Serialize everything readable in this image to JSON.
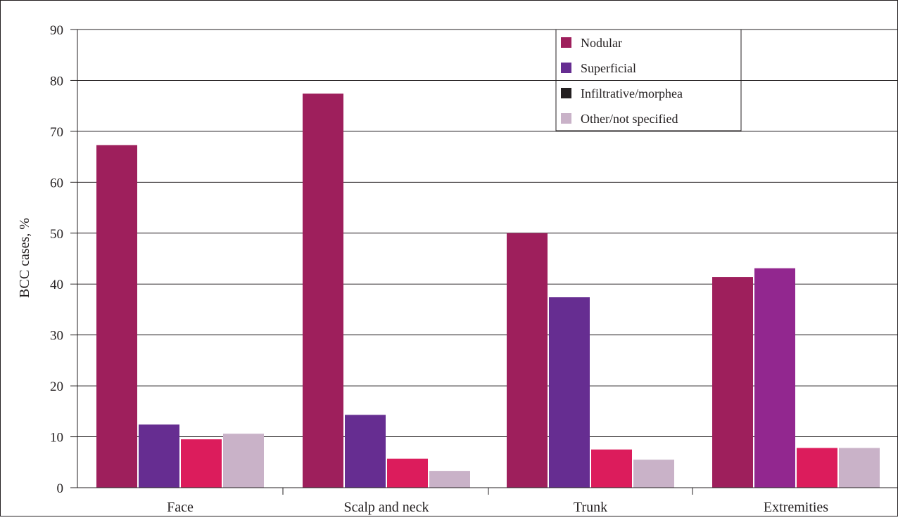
{
  "chart_data": {
    "type": "bar",
    "title": "",
    "xlabel": "",
    "ylabel": "BCC cases, %",
    "ylim": [
      0,
      90
    ],
    "yticks": [
      0,
      10,
      20,
      30,
      40,
      50,
      60,
      70,
      80,
      90
    ],
    "grid": true,
    "legend_position": "top-right",
    "categories": [
      "Face",
      "Scalp and neck",
      "Trunk",
      "Extremities"
    ],
    "series": [
      {
        "name": "Nodular",
        "color": "#9e1f5c",
        "values": [
          67.3,
          77.4,
          50.0,
          41.4
        ]
      },
      {
        "name": "Superficial",
        "color": "#662d91",
        "values": [
          12.4,
          14.3,
          37.4,
          43.1
        ]
      },
      {
        "name": "Infiltrative/morphea",
        "color": "#231f20",
        "legend_color": "#231f20",
        "values": [
          0,
          0,
          0,
          0
        ]
      },
      {
        "name": "Other/not specified",
        "color": "#c9b2c8",
        "values": [
          10.6,
          3.3,
          5.5,
          7.8
        ]
      }
    ],
    "extra_bars": [
      {
        "color": "#dc1c5c",
        "values": [
          9.5,
          5.7,
          7.5,
          7.8
        ]
      }
    ],
    "extremities_colors": [
      "#9e1f5c",
      "#92278f",
      "#dc1c5c",
      "#c9b2c8"
    ]
  }
}
